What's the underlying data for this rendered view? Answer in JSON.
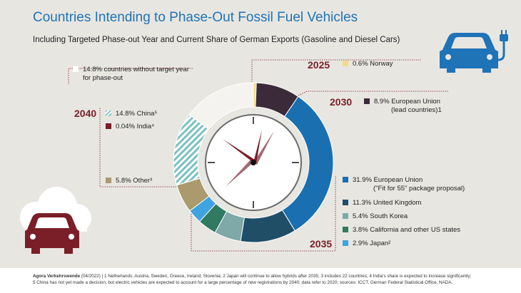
{
  "title": "Countries Intending to Phase-Out Fossil Fuel Vehicles",
  "subtitle": "Including Targeted Phase-out Year and Current Share of German Exports (Gasoline and Diesel Cars)",
  "years": {
    "y2025": "2025",
    "y2030": "2030",
    "y2035": "2035",
    "y2040": "2040"
  },
  "labels": {
    "norway": "0.6% Norway",
    "eu_lead_1": "8.9% European Union",
    "eu_lead_2": "(lead countries)1",
    "eu_fit_1": "31.9% European Union",
    "eu_fit_2": "(\"Fit for 55\" package proposal)",
    "uk": "11.3% United Kingdom",
    "korea": "5.4% South Korea",
    "california": "3.8% California and other US states",
    "japan": "2.9% Japan²",
    "other": "5.8% Other³",
    "china": "14.8% China⁵",
    "india": "0.04% India⁴",
    "notarget_1": "14.8% countries without target year",
    "notarget_2": "for phase-out"
  },
  "footer": {
    "source": "Agora Verkehrswende",
    "line1": "(04/2022) | 1 Netherlands, Austria, Sweden, Greece, Ireland, Slovenia; 2 Japan will continue to allow hybrids after 2035; 3 includes 22 countries; 4 India's share is expected to increase significantly;",
    "line2": "5 China has not yet made a decision, but electric vehicles are expected to account for a large percentage of new registrations by 2040; data refer to 2020; sources: ICCT, German Federal Statistical Office, NADA."
  },
  "colors": {
    "norway": "#f0dc82",
    "eu_lead": "#3a2a3a",
    "eu_fit": "#1a6fb0",
    "uk": "#1f4e66",
    "korea": "#7fa8a8",
    "california": "#2f7a60",
    "japan": "#3fa3e0",
    "other": "#ab9a6e",
    "india": "#7a1e27",
    "china_stripe": "#7cc1c1",
    "notarget": "#f5f3ef",
    "accent": "#1f73b7"
  },
  "icons": [
    "ev-charging-car-icon",
    "fossil-car-cloud-icon",
    "clock-icon"
  ],
  "chart_data": {
    "type": "donut",
    "slices": [
      {
        "label": "Norway",
        "value": 0.6,
        "year": "2025",
        "color": "#f0dc82"
      },
      {
        "label": "European Union (lead countries)",
        "value": 8.9,
        "year": "2030",
        "color": "#3a2a3a"
      },
      {
        "label": "European Union (\"Fit for 55\" package proposal)",
        "value": 31.9,
        "year": "2035",
        "color": "#1a6fb0"
      },
      {
        "label": "United Kingdom",
        "value": 11.3,
        "year": "2035",
        "color": "#1f4e66"
      },
      {
        "label": "South Korea",
        "value": 5.4,
        "year": "2035",
        "color": "#7fa8a8"
      },
      {
        "label": "California and other US states",
        "value": 3.8,
        "year": "2035",
        "color": "#2f7a60"
      },
      {
        "label": "Japan",
        "value": 2.9,
        "year": "2035",
        "color": "#3fa3e0"
      },
      {
        "label": "Other",
        "value": 5.8,
        "year": "2040",
        "color": "#ab9a6e"
      },
      {
        "label": "India",
        "value": 0.04,
        "year": "2040",
        "color": "#7a1e27"
      },
      {
        "label": "China",
        "value": 14.8,
        "year": "2040",
        "color": "stripe"
      },
      {
        "label": "countries without target year for phase-out",
        "value": 14.8,
        "year": "",
        "color": "#f5f3ef"
      }
    ]
  }
}
